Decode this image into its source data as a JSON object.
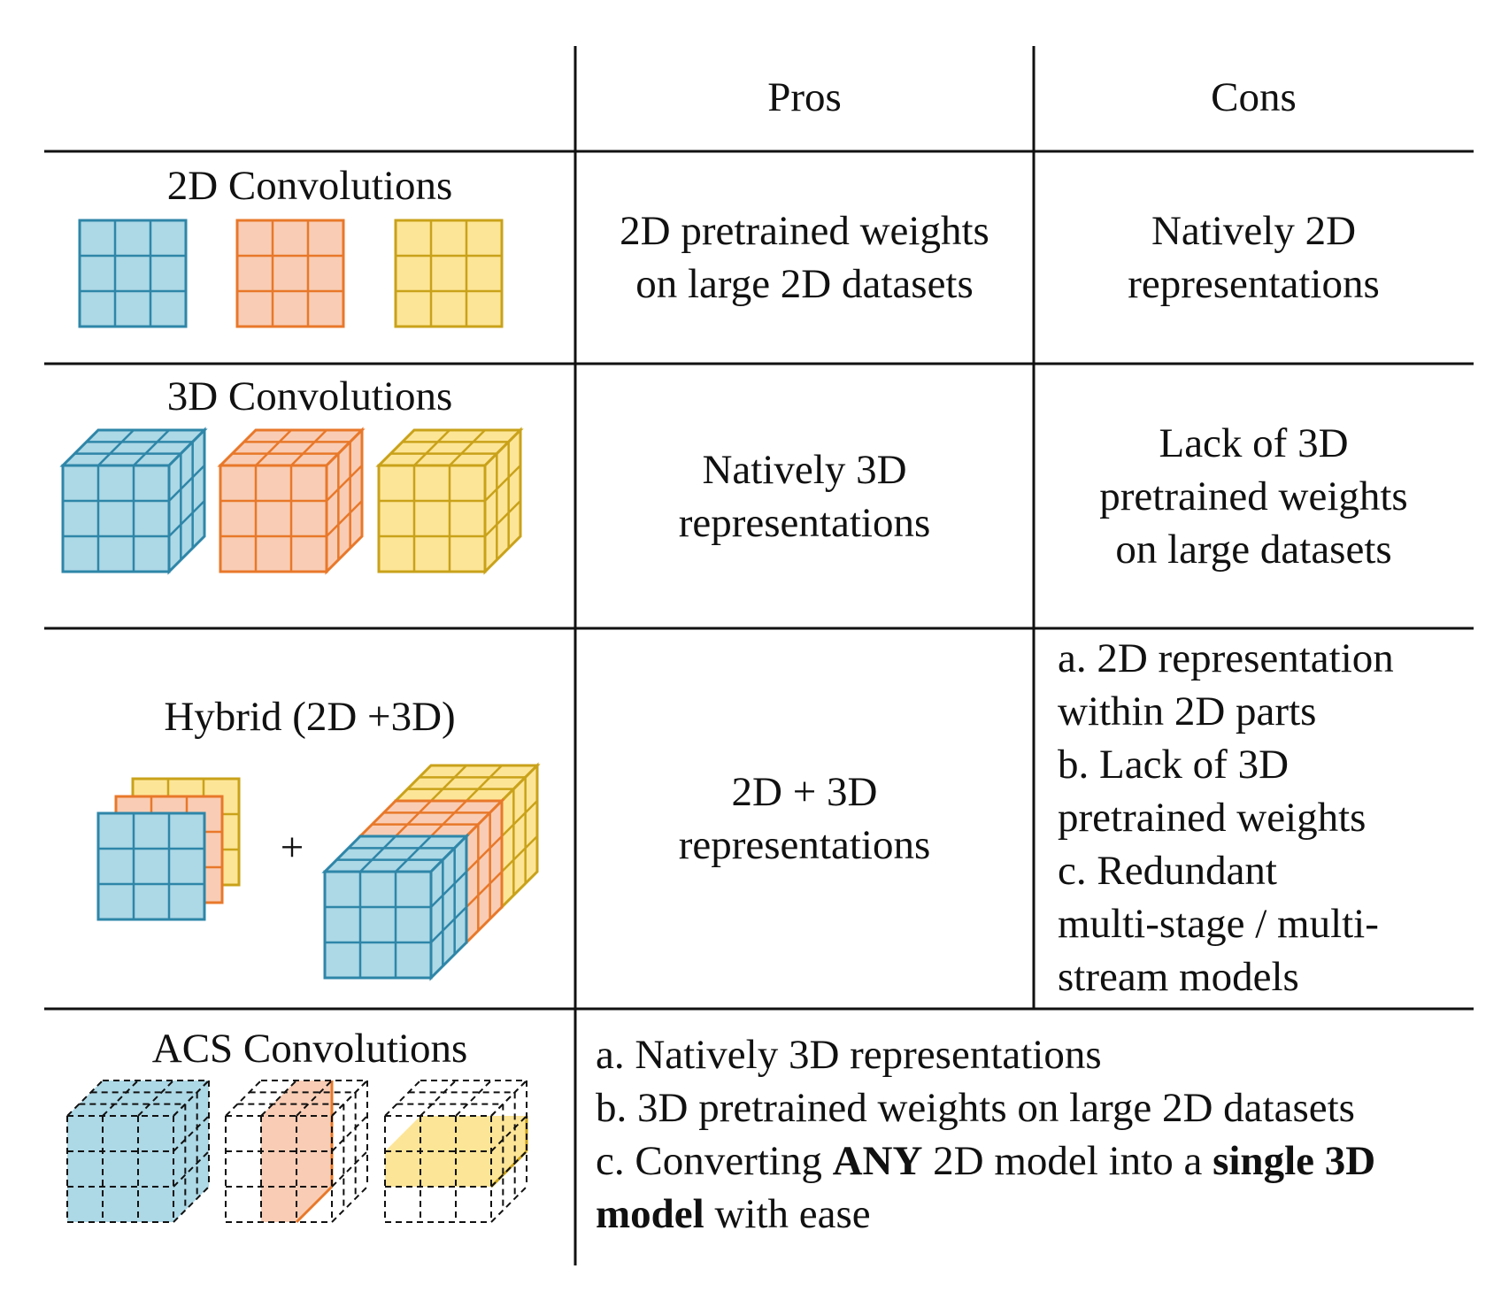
{
  "header": {
    "pros": "Pros",
    "cons": "Cons"
  },
  "rows": [
    {
      "method": "2D Convolutions",
      "pros": [
        "2D pretrained weights",
        "on large 2D datasets"
      ],
      "cons": [
        "Natively 2D",
        "representations"
      ]
    },
    {
      "method": "3D Convolutions",
      "pros": [
        "Natively 3D",
        "representations"
      ],
      "cons": [
        "Lack of 3D",
        "pretrained weights",
        "on large datasets"
      ]
    },
    {
      "method": "Hybrid (2D +3D)",
      "plus": "+",
      "pros": [
        "2D + 3D",
        "representations"
      ],
      "cons": [
        "a. 2D representation",
        "within 2D parts",
        "b. Lack of 3D",
        "pretrained weights",
        "c. Redundant",
        "multi-stage / multi-",
        "stream models"
      ]
    },
    {
      "method": "ACS Convolutions",
      "summary": {
        "a": "a. Natively 3D representations",
        "b": "b. 3D pretrained weights on large 2D datasets",
        "c_pre": "c. Converting ",
        "c_bold1": "ANY",
        "c_mid": " 2D model into a ",
        "c_bold2": "single 3D",
        "d_bold": "model",
        "d_post": " with ease"
      }
    }
  ],
  "colors": {
    "blue_fill": "#add8e6",
    "blue_line": "#2e86a8",
    "orange_fill": "#f9cdb5",
    "orange_line": "#e8782a",
    "yellow_fill": "#fde597",
    "yellow_line": "#c9a21a",
    "rule": "#111111"
  },
  "icons": [
    "2d-kernel-grid-icon",
    "3d-kernel-cube-icon",
    "acs-dashed-cube-icon"
  ]
}
